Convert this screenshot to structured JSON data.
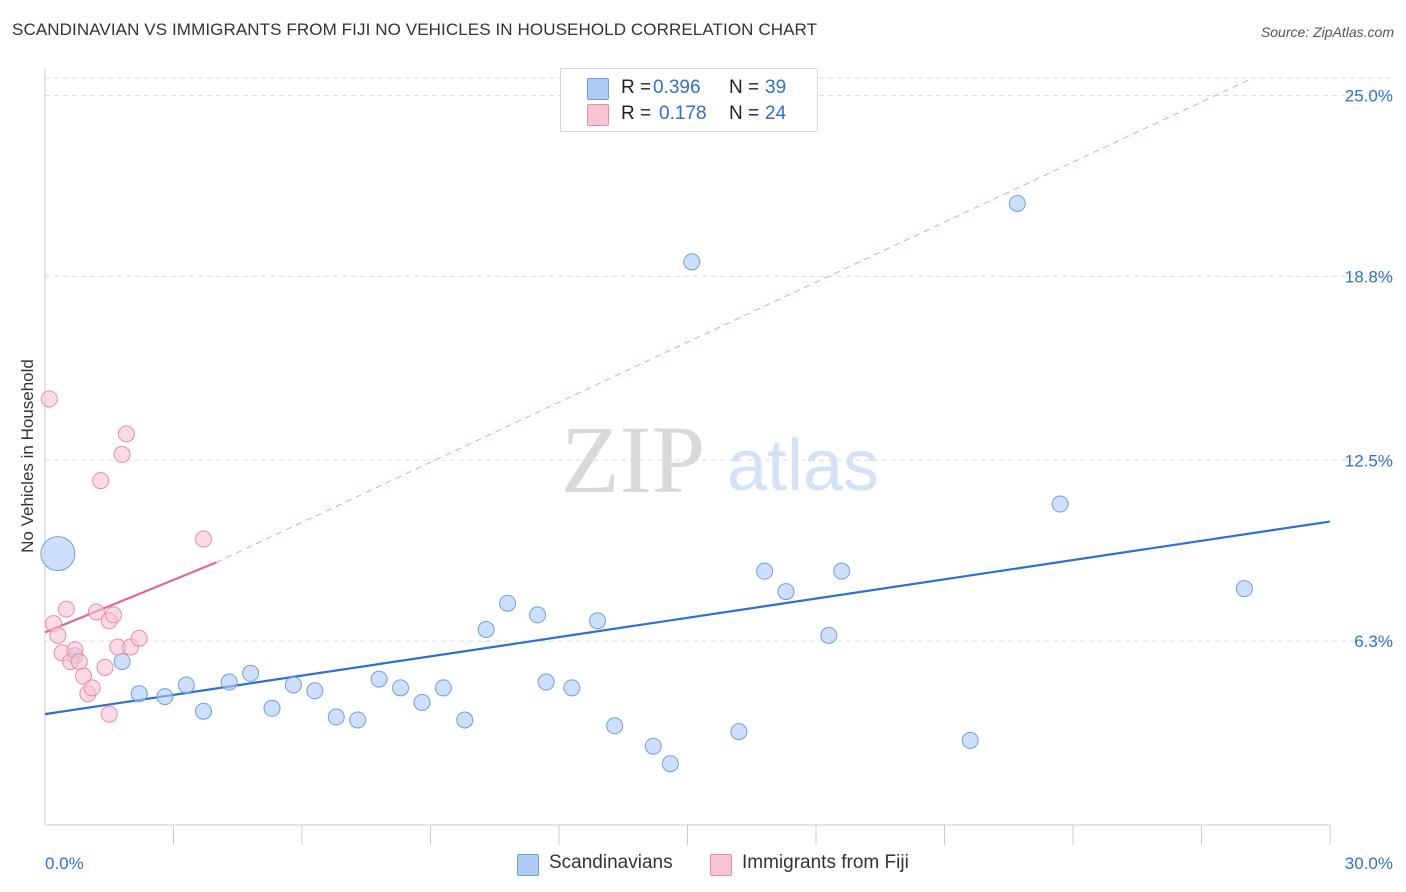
{
  "title": "SCANDINAVIAN VS IMMIGRANTS FROM FIJI NO VEHICLES IN HOUSEHOLD CORRELATION CHART",
  "source": "Source: ZipAtlas.com",
  "watermark": {
    "zip": "ZIP",
    "atlas": "atlas"
  },
  "legend": {
    "rows": [
      {
        "r_label": "R =",
        "r_value": "0.396",
        "n_label": "N =",
        "n_value": "39",
        "color": "#aecbf5",
        "border": "#6e9fe0"
      },
      {
        "r_label": "R =",
        "r_value": "0.178",
        "n_label": "N =",
        "n_value": "24",
        "color": "#f9c5d4",
        "border": "#ec8aa6"
      }
    ]
  },
  "bottom_legend": [
    {
      "label": "Scandinavians",
      "color": "#aecbf5",
      "border": "#6e9fe0"
    },
    {
      "label": "Immigrants from Fiji",
      "color": "#f9c5d4",
      "border": "#ec8aa6"
    }
  ],
  "chart_data": {
    "type": "scatter",
    "title": "SCANDINAVIAN VS IMMIGRANTS FROM FIJI NO VEHICLES IN HOUSEHOLD CORRELATION CHART",
    "xlabel": "",
    "ylabel": "No Vehicles in Household",
    "xlim": [
      0,
      30
    ],
    "ylim": [
      0,
      25.6
    ],
    "x_tick_labels": [
      "0.0%",
      "30.0%"
    ],
    "y_ticks": [
      6.3,
      12.5,
      18.8,
      25.0
    ],
    "y_tick_labels": [
      "6.3%",
      "12.5%",
      "18.8%",
      "25.0%"
    ],
    "grid": true,
    "series": [
      {
        "name": "Scandinavians",
        "color": "#aecbf5",
        "stroke": "#6e9fe0",
        "points": [
          [
            0.3,
            9.3
          ],
          [
            0.7,
            5.8
          ],
          [
            1.8,
            5.6
          ],
          [
            2.2,
            4.5
          ],
          [
            2.8,
            4.4
          ],
          [
            3.3,
            4.8
          ],
          [
            3.7,
            3.9
          ],
          [
            4.3,
            4.9
          ],
          [
            4.8,
            5.2
          ],
          [
            5.3,
            4.0
          ],
          [
            5.8,
            4.8
          ],
          [
            6.3,
            4.6
          ],
          [
            6.8,
            3.7
          ],
          [
            7.3,
            3.6
          ],
          [
            7.8,
            5.0
          ],
          [
            8.3,
            4.7
          ],
          [
            8.8,
            4.2
          ],
          [
            9.3,
            4.7
          ],
          [
            9.8,
            3.6
          ],
          [
            10.3,
            6.7
          ],
          [
            10.8,
            7.6
          ],
          [
            11.5,
            7.2
          ],
          [
            11.7,
            4.9
          ],
          [
            12.3,
            4.7
          ],
          [
            12.9,
            7.0
          ],
          [
            13.3,
            3.4
          ],
          [
            14.2,
            2.7
          ],
          [
            14.6,
            2.1
          ],
          [
            15.1,
            19.3
          ],
          [
            16.2,
            3.2
          ],
          [
            16.8,
            8.7
          ],
          [
            17.3,
            8.0
          ],
          [
            18.3,
            6.5
          ],
          [
            18.6,
            8.7
          ],
          [
            21.6,
            2.9
          ],
          [
            22.7,
            21.3
          ],
          [
            23.7,
            11.0
          ],
          [
            28.0,
            8.1
          ]
        ]
      },
      {
        "name": "Immigrants from Fiji",
        "color": "#f9c5d4",
        "stroke": "#ec8aa6",
        "points": [
          [
            0.1,
            14.6
          ],
          [
            0.2,
            6.9
          ],
          [
            0.3,
            6.5
          ],
          [
            0.4,
            5.9
          ],
          [
            0.5,
            7.4
          ],
          [
            0.6,
            5.6
          ],
          [
            0.7,
            6.0
          ],
          [
            0.8,
            5.6
          ],
          [
            0.9,
            5.1
          ],
          [
            1.0,
            4.5
          ],
          [
            1.1,
            4.7
          ],
          [
            1.2,
            7.3
          ],
          [
            1.3,
            11.8
          ],
          [
            1.4,
            5.4
          ],
          [
            1.5,
            3.8
          ],
          [
            1.5,
            7.0
          ],
          [
            1.6,
            7.2
          ],
          [
            1.7,
            6.1
          ],
          [
            1.8,
            12.7
          ],
          [
            1.9,
            13.4
          ],
          [
            2.0,
            6.1
          ],
          [
            2.2,
            6.4
          ],
          [
            3.7,
            9.8
          ]
        ]
      }
    ],
    "trend_lines": [
      {
        "series": "Scandinavians",
        "x": [
          0,
          30
        ],
        "y": [
          3.8,
          10.4
        ],
        "color": "#2f6fce",
        "style": "solid"
      },
      {
        "series": "Immigrants from Fiji",
        "x": [
          0,
          4.0
        ],
        "y": [
          6.6,
          9.0
        ],
        "color": "#e0678f",
        "style": "solid"
      },
      {
        "series": "Immigrants from Fiji",
        "x": [
          4.0,
          28.2
        ],
        "y": [
          9.0,
          25.6
        ],
        "color": "#e6a2b8",
        "style": "dashed"
      }
    ]
  }
}
